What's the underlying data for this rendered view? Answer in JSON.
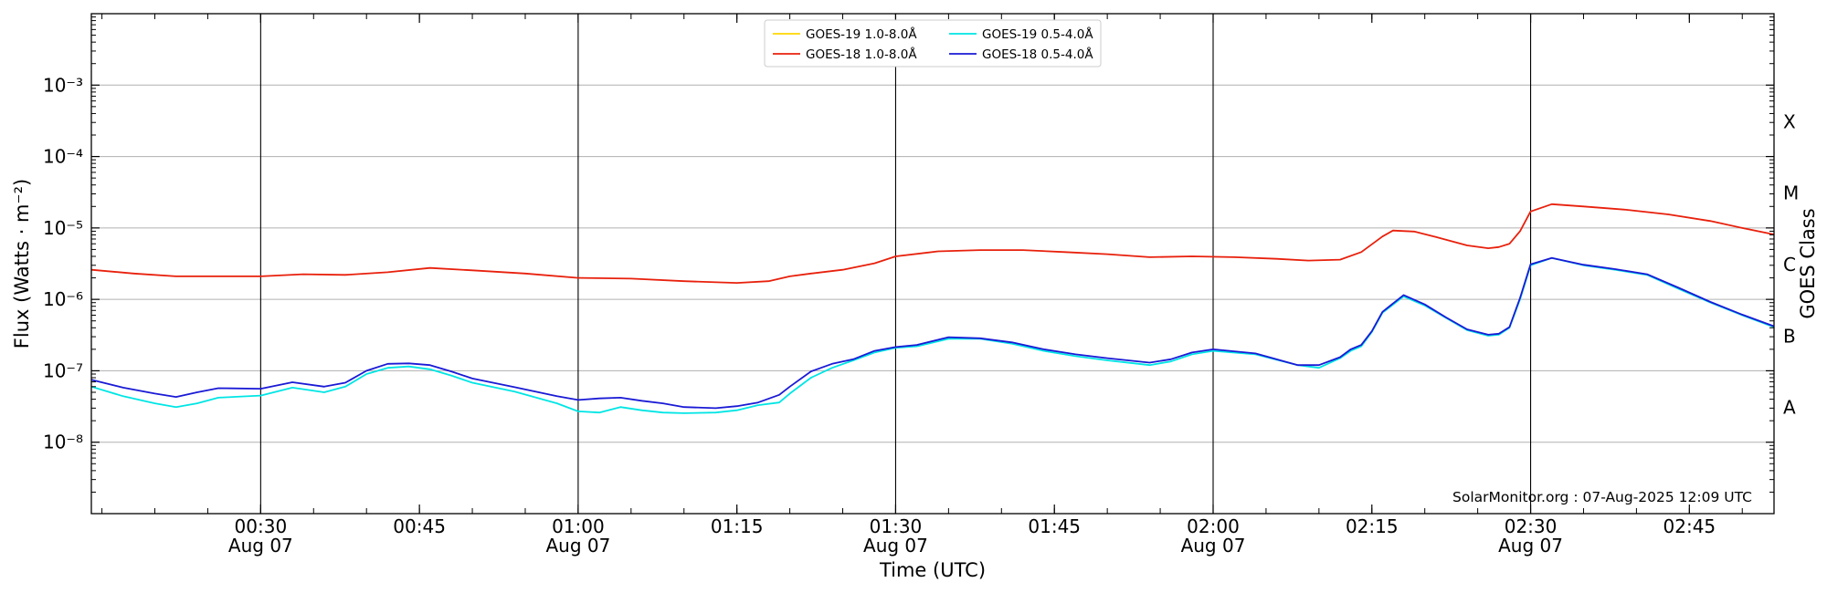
{
  "chart_data": {
    "type": "line",
    "xlabel": "Time (UTC)",
    "ylabel": "Flux (Watts · m⁻²)",
    "right_ylabel": "GOES Class",
    "yscale": "log",
    "ylim": [
      1e-09,
      0.01
    ],
    "xlim": [
      "2025-08-07 00:14",
      "2025-08-07 02:53"
    ],
    "x_ticks": [
      {
        "time": "00:30",
        "date": "Aug 07",
        "gridline": true
      },
      {
        "time": "00:45",
        "date": "",
        "gridline": false
      },
      {
        "time": "01:00",
        "date": "Aug 07",
        "gridline": true
      },
      {
        "time": "01:15",
        "date": "",
        "gridline": false
      },
      {
        "time": "01:30",
        "date": "Aug 07",
        "gridline": true
      },
      {
        "time": "01:45",
        "date": "",
        "gridline": false
      },
      {
        "time": "02:00",
        "date": "Aug 07",
        "gridline": true
      },
      {
        "time": "02:15",
        "date": "",
        "gridline": false
      },
      {
        "time": "02:30",
        "date": "Aug 07",
        "gridline": true
      },
      {
        "time": "02:45",
        "date": "",
        "gridline": false
      }
    ],
    "y_ticks": [
      {
        "value": 1e-08,
        "label": "10⁻⁸"
      },
      {
        "value": 1e-07,
        "label": "10⁻⁷"
      },
      {
        "value": 1e-06,
        "label": "10⁻⁶"
      },
      {
        "value": 1e-05,
        "label": "10⁻⁵"
      },
      {
        "value": 0.0001,
        "label": "10⁻⁴"
      },
      {
        "value": 0.001,
        "label": "10⁻³"
      }
    ],
    "goes_classes": [
      {
        "label": "A",
        "value": 3.16e-08
      },
      {
        "label": "B",
        "value": 3.16e-07
      },
      {
        "label": "C",
        "value": 3.16e-06
      },
      {
        "label": "M",
        "value": 3.16e-05
      },
      {
        "label": "X",
        "value": 0.000316
      }
    ],
    "grid": "horizontal at decades, vertical at Aug 07 tick times",
    "legend_position": "top-center",
    "credit": "SolarMonitor.org : 07-Aug-2025 12:09 UTC",
    "series": [
      {
        "name": "GOES-19 1.0-8.0Å",
        "color": "#ffd700",
        "time": [],
        "values": []
      },
      {
        "name": "GOES-18 1.0-8.0Å",
        "color": "#e8200c",
        "time": [
          "00:14",
          "00:18",
          "00:22",
          "00:26",
          "00:30",
          "00:34",
          "00:38",
          "00:42",
          "00:46",
          "00:50",
          "00:55",
          "01:00",
          "01:05",
          "01:10",
          "01:15",
          "01:18",
          "01:20",
          "01:22",
          "01:25",
          "01:28",
          "01:30",
          "01:34",
          "01:38",
          "01:42",
          "01:46",
          "01:50",
          "01:54",
          "01:58",
          "02:02",
          "02:06",
          "02:09",
          "02:12",
          "02:14",
          "02:16",
          "02:17",
          "02:19",
          "02:21",
          "02:24",
          "02:26",
          "02:27",
          "02:28",
          "02:29",
          "02:30",
          "02:32",
          "02:35",
          "02:39",
          "02:43",
          "02:47",
          "02:50",
          "02:53"
        ],
        "values": [
          2.6e-06,
          2.3e-06,
          2.1e-06,
          2.1e-06,
          2.1e-06,
          2.25e-06,
          2.2e-06,
          2.4e-06,
          2.75e-06,
          2.55e-06,
          2.3e-06,
          2e-06,
          1.95e-06,
          1.8e-06,
          1.7e-06,
          1.8e-06,
          2.1e-06,
          2.3e-06,
          2.6e-06,
          3.2e-06,
          4e-06,
          4.7e-06,
          4.9e-06,
          4.9e-06,
          4.6e-06,
          4.3e-06,
          3.9e-06,
          4e-06,
          3.9e-06,
          3.7e-06,
          3.5e-06,
          3.6e-06,
          4.6e-06,
          7.6e-06,
          9.2e-06,
          8.9e-06,
          7.5e-06,
          5.7e-06,
          5.2e-06,
          5.4e-06,
          6e-06,
          9e-06,
          1.7e-05,
          2.15e-05,
          2e-05,
          1.8e-05,
          1.55e-05,
          1.25e-05,
          1e-05,
          8.1e-06
        ]
      },
      {
        "name": "GOES-19 0.5-4.0Å",
        "color": "#00e5e5",
        "time": [
          "00:14",
          "00:17",
          "00:20",
          "00:22",
          "00:24",
          "00:26",
          "00:30",
          "00:33",
          "00:36",
          "00:38",
          "00:40",
          "00:42",
          "00:44",
          "00:46",
          "00:48",
          "00:50",
          "00:54",
          "00:58",
          "01:00",
          "01:02",
          "01:04",
          "01:06",
          "01:08",
          "01:10",
          "01:13",
          "01:15",
          "01:17",
          "01:19",
          "01:20",
          "01:22",
          "01:24",
          "01:26",
          "01:28",
          "01:30",
          "01:32",
          "01:35",
          "01:38",
          "01:41",
          "01:44",
          "01:47",
          "01:50",
          "01:54",
          "01:56",
          "01:58",
          "02:00",
          "02:04",
          "02:08",
          "02:10",
          "02:12",
          "02:13",
          "02:14",
          "02:15",
          "02:16",
          "02:18",
          "02:20",
          "02:22",
          "02:24",
          "02:26",
          "02:27",
          "02:28",
          "02:29",
          "02:30",
          "02:32",
          "02:35",
          "02:38",
          "02:41",
          "02:44",
          "02:47",
          "02:50",
          "02:53"
        ],
        "values": [
          6e-08,
          4.4e-08,
          3.5e-08,
          3.1e-08,
          3.5e-08,
          4.2e-08,
          4.5e-08,
          5.8e-08,
          5e-08,
          6e-08,
          9e-08,
          1.1e-07,
          1.15e-07,
          1.05e-07,
          8.6e-08,
          6.8e-08,
          5.1e-08,
          3.5e-08,
          2.7e-08,
          2.6e-08,
          3.1e-08,
          2.8e-08,
          2.6e-08,
          2.55e-08,
          2.6e-08,
          2.8e-08,
          3.3e-08,
          3.6e-08,
          4.8e-08,
          8e-08,
          1.1e-07,
          1.4e-07,
          1.8e-07,
          2.1e-07,
          2.2e-07,
          2.8e-07,
          2.8e-07,
          2.4e-07,
          1.9e-07,
          1.6e-07,
          1.4e-07,
          1.2e-07,
          1.35e-07,
          1.7e-07,
          1.9e-07,
          1.7e-07,
          1.2e-07,
          1.1e-07,
          1.5e-07,
          1.9e-07,
          2.2e-07,
          3.5e-07,
          6.5e-07,
          1.1e-06,
          8.2e-07,
          5.5e-07,
          3.7e-07,
          3.1e-07,
          3.2e-07,
          4e-07,
          1e-06,
          3e-06,
          3.8e-06,
          3e-06,
          2.6e-06,
          2.2e-06,
          1.4e-06,
          9e-07,
          6e-07,
          4.1e-07
        ]
      },
      {
        "name": "GOES-18 0.5-4.0Å",
        "color": "#1a1ad6",
        "time": [
          "00:14",
          "00:17",
          "00:20",
          "00:22",
          "00:24",
          "00:26",
          "00:30",
          "00:33",
          "00:36",
          "00:38",
          "00:40",
          "00:42",
          "00:44",
          "00:46",
          "00:48",
          "00:50",
          "00:54",
          "00:58",
          "01:00",
          "01:02",
          "01:04",
          "01:06",
          "01:08",
          "01:10",
          "01:13",
          "01:15",
          "01:17",
          "01:19",
          "01:20",
          "01:22",
          "01:24",
          "01:26",
          "01:28",
          "01:30",
          "01:32",
          "01:35",
          "01:38",
          "01:41",
          "01:44",
          "01:47",
          "01:50",
          "01:54",
          "01:56",
          "01:58",
          "02:00",
          "02:04",
          "02:08",
          "02:10",
          "02:12",
          "02:13",
          "02:14",
          "02:15",
          "02:16",
          "02:18",
          "02:20",
          "02:22",
          "02:24",
          "02:26",
          "02:27",
          "02:28",
          "02:29",
          "02:30",
          "02:32",
          "02:35",
          "02:38",
          "02:41",
          "02:44",
          "02:47",
          "02:50",
          "02:53"
        ],
        "values": [
          7.5e-08,
          5.8e-08,
          4.8e-08,
          4.3e-08,
          5e-08,
          5.7e-08,
          5.6e-08,
          6.9e-08,
          6e-08,
          6.8e-08,
          1e-07,
          1.25e-07,
          1.27e-07,
          1.2e-07,
          9.8e-08,
          7.8e-08,
          5.9e-08,
          4.4e-08,
          3.9e-08,
          4.1e-08,
          4.2e-08,
          3.8e-08,
          3.5e-08,
          3.1e-08,
          3e-08,
          3.2e-08,
          3.6e-08,
          4.6e-08,
          6e-08,
          9.8e-08,
          1.25e-07,
          1.45e-07,
          1.9e-07,
          2.15e-07,
          2.3e-07,
          2.95e-07,
          2.85e-07,
          2.5e-07,
          2e-07,
          1.7e-07,
          1.5e-07,
          1.3e-07,
          1.45e-07,
          1.8e-07,
          2e-07,
          1.75e-07,
          1.2e-07,
          1.2e-07,
          1.55e-07,
          2e-07,
          2.3e-07,
          3.6e-07,
          6.7e-07,
          1.15e-06,
          8.5e-07,
          5.6e-07,
          3.8e-07,
          3.2e-07,
          3.3e-07,
          4.1e-07,
          1.05e-06,
          3.1e-06,
          3.8e-06,
          3.05e-06,
          2.65e-06,
          2.25e-06,
          1.45e-06,
          9.2e-07,
          6.1e-07,
          4.2e-07
        ]
      }
    ]
  }
}
